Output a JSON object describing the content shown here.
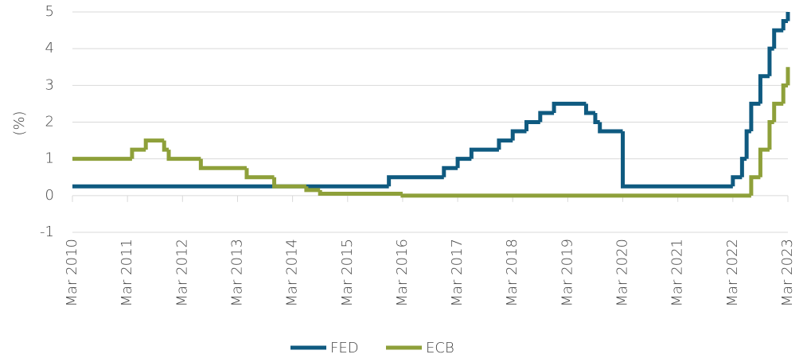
{
  "chart_data": {
    "type": "step",
    "ylabel": "(%)",
    "ylim": [
      -1,
      5
    ],
    "yticks": [
      -1,
      0,
      1,
      2,
      3,
      4,
      5
    ],
    "grid": true,
    "xlim": [
      "2010-03",
      "2023-03"
    ],
    "xticks": [
      {
        "value": "2010-03",
        "label": "Mar 2010"
      },
      {
        "value": "2011-03",
        "label": "Mar 2011"
      },
      {
        "value": "2012-03",
        "label": "Mar 2012"
      },
      {
        "value": "2013-03",
        "label": "Mar 2013"
      },
      {
        "value": "2014-03",
        "label": "Mar 2014"
      },
      {
        "value": "2015-03",
        "label": "Mar 2015"
      },
      {
        "value": "2016-03",
        "label": "Mar 2016"
      },
      {
        "value": "2017-03",
        "label": "Mar 2017"
      },
      {
        "value": "2018-03",
        "label": "Mar 2018"
      },
      {
        "value": "2019-03",
        "label": "Mar 2019"
      },
      {
        "value": "2020-03",
        "label": "Mar 2020"
      },
      {
        "value": "2021-03",
        "label": "Mar 2021"
      },
      {
        "value": "2022-03",
        "label": "Mar 2022"
      },
      {
        "value": "2023-03",
        "label": "Mar 2023"
      }
    ],
    "legend": "bottom",
    "series": [
      {
        "name": "FED",
        "color": "#0f5a80",
        "x": [
          "2010-03",
          "2015-12",
          "2016-12",
          "2017-03",
          "2017-06",
          "2017-12",
          "2018-03",
          "2018-06",
          "2018-09",
          "2018-12",
          "2019-07",
          "2019-09",
          "2019-10",
          "2020-03",
          "2022-03",
          "2022-05",
          "2022-06",
          "2022-07",
          "2022-09",
          "2022-11",
          "2022-12",
          "2023-02",
          "2023-03"
        ],
        "values": [
          0.25,
          0.5,
          0.75,
          1.0,
          1.25,
          1.5,
          1.75,
          2.0,
          2.25,
          2.5,
          2.25,
          2.0,
          1.75,
          0.25,
          0.5,
          1.0,
          1.75,
          2.5,
          3.25,
          4.0,
          4.5,
          4.75,
          5.0
        ]
      },
      {
        "name": "ECB",
        "color": "#8ea03a",
        "x": [
          "2010-03",
          "2011-04",
          "2011-07",
          "2011-11",
          "2011-12",
          "2012-07",
          "2013-05",
          "2013-11",
          "2014-06",
          "2014-09",
          "2016-03",
          "2022-07",
          "2022-09",
          "2022-11",
          "2022-12",
          "2023-02",
          "2023-03"
        ],
        "values": [
          1.0,
          1.25,
          1.5,
          1.25,
          1.0,
          0.75,
          0.5,
          0.25,
          0.15,
          0.05,
          0.0,
          0.5,
          1.25,
          2.0,
          2.5,
          3.0,
          3.5
        ]
      }
    ]
  }
}
